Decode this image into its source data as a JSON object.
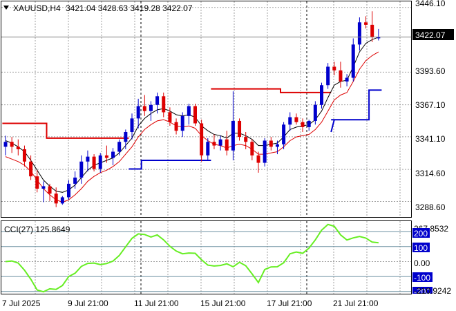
{
  "window": {
    "symbol_label": "XAUUSD,H4",
    "ohlc_readout": "3421.04 3428.63 3419.28 3422.07"
  },
  "current_price_label": "3422.07",
  "price_axis_labels": [
    "3446.10",
    "3393.60",
    "3367.10",
    "3341.10",
    "3314.60",
    "3288.60"
  ],
  "date_labels": [
    "7 Jul 2025",
    "9 Jul 21:00",
    "11 Jul 21:00",
    "15 Jul 21:00",
    "17 Jul 21:00",
    "21 Jul 21:00"
  ],
  "cci_panel": {
    "label": "CCI(27) 125.8649",
    "max_label": "267.8532",
    "min_label": "-210.9242",
    "level_labels": [
      "200",
      "100",
      "0.00",
      "-100",
      "-200"
    ]
  },
  "colors": {
    "bull_candle": "#0000cc",
    "bear_candle": "#dd0000",
    "upper_envelope": "#dd0000",
    "lower_envelope": "#0000cc",
    "moving_average": "#000000",
    "ma_lower_band": "#dd0000",
    "cci_line": "#66ee22",
    "level_line": "#6a8fa0",
    "label_box": "#0000cc"
  },
  "chart_data": {
    "type": "candlestick",
    "price_ylim": [
      3276,
      3451
    ],
    "cci_ylim": [
      -215,
      270
    ],
    "ohlc": [
      [
        3333,
        3342,
        3326,
        3337
      ],
      [
        3337,
        3341,
        3328,
        3333
      ],
      [
        3333,
        3339,
        3326,
        3331
      ],
      [
        3331,
        3334,
        3317,
        3321
      ],
      [
        3321,
        3326,
        3306,
        3309
      ],
      [
        3309,
        3314,
        3296,
        3299
      ],
      [
        3299,
        3305,
        3288,
        3301
      ],
      [
        3301,
        3303,
        3289,
        3295
      ],
      [
        3295,
        3300,
        3284,
        3287
      ],
      [
        3287,
        3293,
        3286,
        3292
      ],
      [
        3292,
        3306,
        3290,
        3303
      ],
      [
        3303,
        3313,
        3299,
        3308
      ],
      [
        3308,
        3326,
        3303,
        3321
      ],
      [
        3321,
        3330,
        3313,
        3325
      ],
      [
        3325,
        3327,
        3313,
        3315
      ],
      [
        3315,
        3328,
        3312,
        3326
      ],
      [
        3326,
        3334,
        3320,
        3324
      ],
      [
        3324,
        3332,
        3318,
        3329
      ],
      [
        3329,
        3339,
        3326,
        3337
      ],
      [
        3337,
        3347,
        3331,
        3345
      ],
      [
        3345,
        3360,
        3339,
        3356
      ],
      [
        3356,
        3372,
        3348,
        3366
      ],
      [
        3366,
        3375,
        3358,
        3362
      ],
      [
        3362,
        3370,
        3354,
        3367
      ],
      [
        3367,
        3377,
        3360,
        3374
      ],
      [
        3374,
        3377,
        3357,
        3361
      ],
      [
        3361,
        3365,
        3350,
        3353
      ],
      [
        3353,
        3356,
        3343,
        3346
      ],
      [
        3346,
        3361,
        3341,
        3358
      ],
      [
        3358,
        3368,
        3351,
        3366
      ],
      [
        3366,
        3368,
        3350,
        3352
      ],
      [
        3352,
        3355,
        3321,
        3326
      ],
      [
        3326,
        3340,
        3322,
        3337
      ],
      [
        3337,
        3343,
        3331,
        3334
      ],
      [
        3334,
        3342,
        3330,
        3339
      ],
      [
        3339,
        3346,
        3326,
        3330
      ],
      [
        3330,
        3378,
        3322,
        3354
      ],
      [
        3354,
        3356,
        3338,
        3341
      ],
      [
        3341,
        3345,
        3331,
        3337
      ],
      [
        3337,
        3339,
        3322,
        3326
      ],
      [
        3326,
        3329,
        3312,
        3320
      ],
      [
        3320,
        3340,
        3317,
        3338
      ],
      [
        3338,
        3341,
        3330,
        3333
      ],
      [
        3333,
        3338,
        3327,
        3335
      ],
      [
        3335,
        3353,
        3331,
        3351
      ],
      [
        3351,
        3361,
        3346,
        3357
      ],
      [
        3357,
        3360,
        3351,
        3353
      ],
      [
        3353,
        3356,
        3345,
        3349
      ],
      [
        3349,
        3355,
        3346,
        3354
      ],
      [
        3354,
        3370,
        3351,
        3367
      ],
      [
        3367,
        3385,
        3364,
        3383
      ],
      [
        3383,
        3401,
        3380,
        3398
      ],
      [
        3398,
        3402,
        3391,
        3395
      ],
      [
        3395,
        3402,
        3381,
        3386
      ],
      [
        3386,
        3392,
        3382,
        3389
      ],
      [
        3389,
        3421,
        3386,
        3416
      ],
      [
        3416,
        3438,
        3411,
        3434
      ],
      [
        3434,
        3439,
        3429,
        3432
      ],
      [
        3432,
        3443,
        3418,
        3422
      ],
      [
        3421.04,
        3428.63,
        3419.28,
        3422.07
      ]
    ],
    "ma": [
      3338,
      3336,
      3333,
      3329,
      3322,
      3314,
      3306,
      3301,
      3297,
      3296,
      3298,
      3302,
      3308,
      3314,
      3318,
      3320,
      3322,
      3324,
      3328,
      3334,
      3340,
      3350,
      3356,
      3360,
      3363,
      3364,
      3362,
      3359,
      3358,
      3359,
      3357,
      3350,
      3346,
      3343,
      3342,
      3340,
      3344,
      3344,
      3342,
      3339,
      3334,
      3334,
      3335,
      3336,
      3341,
      3347,
      3349,
      3350,
      3351,
      3355,
      3362,
      3373,
      3383,
      3386,
      3387,
      3398,
      3410,
      3417,
      3420,
      3422
    ],
    "ma_lower": [
      3325,
      3323,
      3321,
      3318,
      3313,
      3306,
      3299,
      3294,
      3290,
      3288,
      3290,
      3294,
      3299,
      3305,
      3309,
      3312,
      3314,
      3317,
      3321,
      3327,
      3333,
      3341,
      3347,
      3351,
      3354,
      3355,
      3353,
      3350,
      3349,
      3350,
      3348,
      3342,
      3338,
      3335,
      3334,
      3332,
      3334,
      3335,
      3334,
      3331,
      3327,
      3327,
      3328,
      3329,
      3333,
      3338,
      3341,
      3342,
      3343,
      3347,
      3353,
      3362,
      3371,
      3375,
      3377,
      3386,
      3396,
      3403,
      3407,
      3410
    ],
    "upper_step": [
      [
        0,
        6,
        3352
      ],
      [
        7,
        19,
        3340
      ],
      [
        33,
        43,
        3380
      ],
      [
        44,
        51,
        3377
      ]
    ],
    "lower_step": [
      [
        20,
        21,
        3315
      ],
      [
        22,
        32,
        3322
      ],
      [
        52,
        57,
        3355
      ],
      [
        58,
        59,
        3379
      ]
    ],
    "cci": [
      0,
      4,
      -10,
      -58,
      -118,
      -190,
      -202,
      -182,
      -186,
      -160,
      -100,
      -78,
      -32,
      -12,
      -10,
      -20,
      -13,
      3,
      41,
      98,
      155,
      185,
      181,
      164,
      178,
      145,
      102,
      70,
      52,
      57,
      55,
      12,
      -24,
      -30,
      -26,
      -15,
      -35,
      -5,
      -28,
      -83,
      -140,
      -53,
      -36,
      -35,
      -8,
      52,
      64,
      55,
      90,
      145,
      210,
      248,
      236,
      178,
      144,
      158,
      168,
      157,
      130,
      126
    ]
  }
}
